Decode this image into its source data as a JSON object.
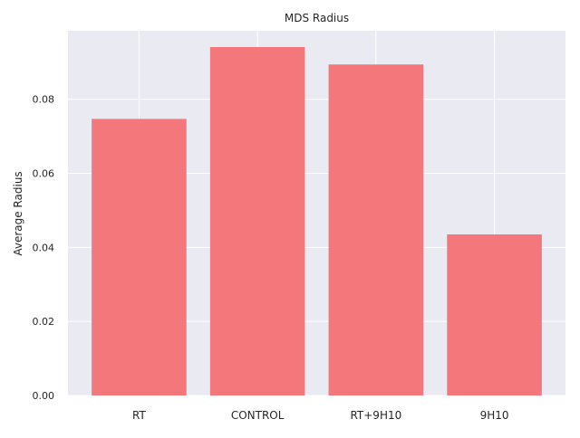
{
  "chart_data": {
    "type": "bar",
    "title": "MDS Radius",
    "xlabel": "",
    "ylabel": "Average Radius",
    "categories": [
      "RT",
      "CONTROL",
      "RT+9H10",
      "9H10"
    ],
    "values": [
      0.0747,
      0.0941,
      0.0894,
      0.0435
    ],
    "ylim": [
      0,
      0.0985
    ],
    "yticks": [
      0.0,
      0.02,
      0.04,
      0.06,
      0.08
    ],
    "ytick_labels": [
      "0.00",
      "0.02",
      "0.04",
      "0.06",
      "0.08"
    ],
    "grid": true,
    "legend": "none",
    "colors": {
      "bar": "#f47174",
      "background": "#eaeaf2",
      "grid": "#ffffff"
    }
  }
}
